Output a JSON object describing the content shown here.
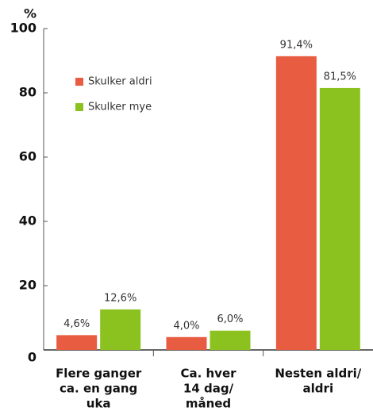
{
  "chart_data": {
    "type": "bar",
    "y_label": "%",
    "categories": [
      [
        "Flere ganger",
        "ca. en gang",
        "uka"
      ],
      [
        "Ca. hver",
        "14 dag/",
        "måned"
      ],
      [
        "Nesten aldri/",
        "aldri"
      ]
    ],
    "series": [
      {
        "name": "Skulker aldri",
        "color": "#e85c41",
        "values": [
          4.6,
          4.0,
          91.4
        ],
        "value_labels": [
          "4,6%",
          "4,0%",
          "91,4%"
        ]
      },
      {
        "name": "Skulker mye",
        "color": "#8cc21f",
        "values": [
          12.6,
          6.0,
          81.5
        ],
        "value_labels": [
          "12,6%",
          "6,0%",
          "81,5%"
        ]
      }
    ],
    "ylim": [
      0,
      100
    ],
    "yticks": [
      0,
      20,
      40,
      60,
      80,
      100
    ]
  }
}
